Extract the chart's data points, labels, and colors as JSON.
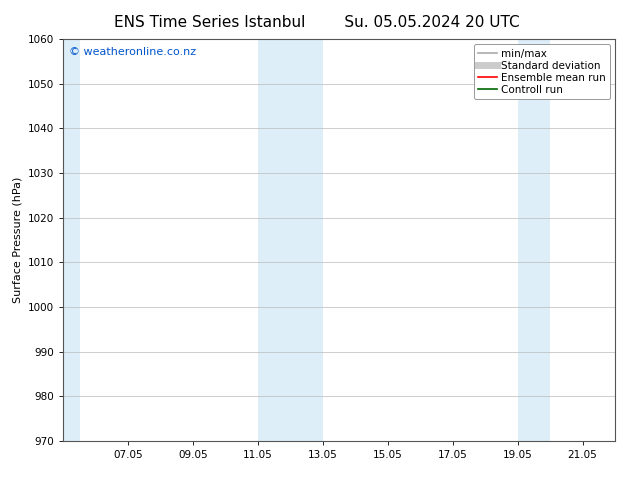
{
  "title_left": "ENS Time Series Istanbul",
  "title_right": "Su. 05.05.2024 20 UTC",
  "ylabel": "Surface Pressure (hPa)",
  "ylim": [
    970,
    1060
  ],
  "yticks": [
    970,
    980,
    990,
    1000,
    1010,
    1020,
    1030,
    1040,
    1050,
    1060
  ],
  "xtick_labels": [
    "07.05",
    "09.05",
    "11.05",
    "13.05",
    "15.05",
    "17.05",
    "19.05",
    "21.05"
  ],
  "xmin": 5.0,
  "xmax": 22.0,
  "shaded_bands": [
    {
      "x_start": 5.0,
      "x_end": 5.5
    },
    {
      "x_start": 11.0,
      "x_end": 13.0
    },
    {
      "x_start": 19.0,
      "x_end": 20.0
    }
  ],
  "shaded_color": "#ddeef8",
  "watermark_text": "© weatheronline.co.nz",
  "watermark_color": "#0055cc",
  "legend_items": [
    {
      "label": "min/max",
      "color": "#aaaaaa",
      "lw": 1.2,
      "ls": "-"
    },
    {
      "label": "Standard deviation",
      "color": "#cccccc",
      "lw": 5,
      "ls": "-"
    },
    {
      "label": "Ensemble mean run",
      "color": "#ff0000",
      "lw": 1.2,
      "ls": "-"
    },
    {
      "label": "Controll run",
      "color": "#006600",
      "lw": 1.2,
      "ls": "-"
    }
  ],
  "background_color": "#ffffff",
  "grid_color": "#bbbbbb",
  "title_fontsize": 11,
  "label_fontsize": 8,
  "tick_fontsize": 7.5,
  "legend_fontsize": 7.5,
  "watermark_fontsize": 8
}
